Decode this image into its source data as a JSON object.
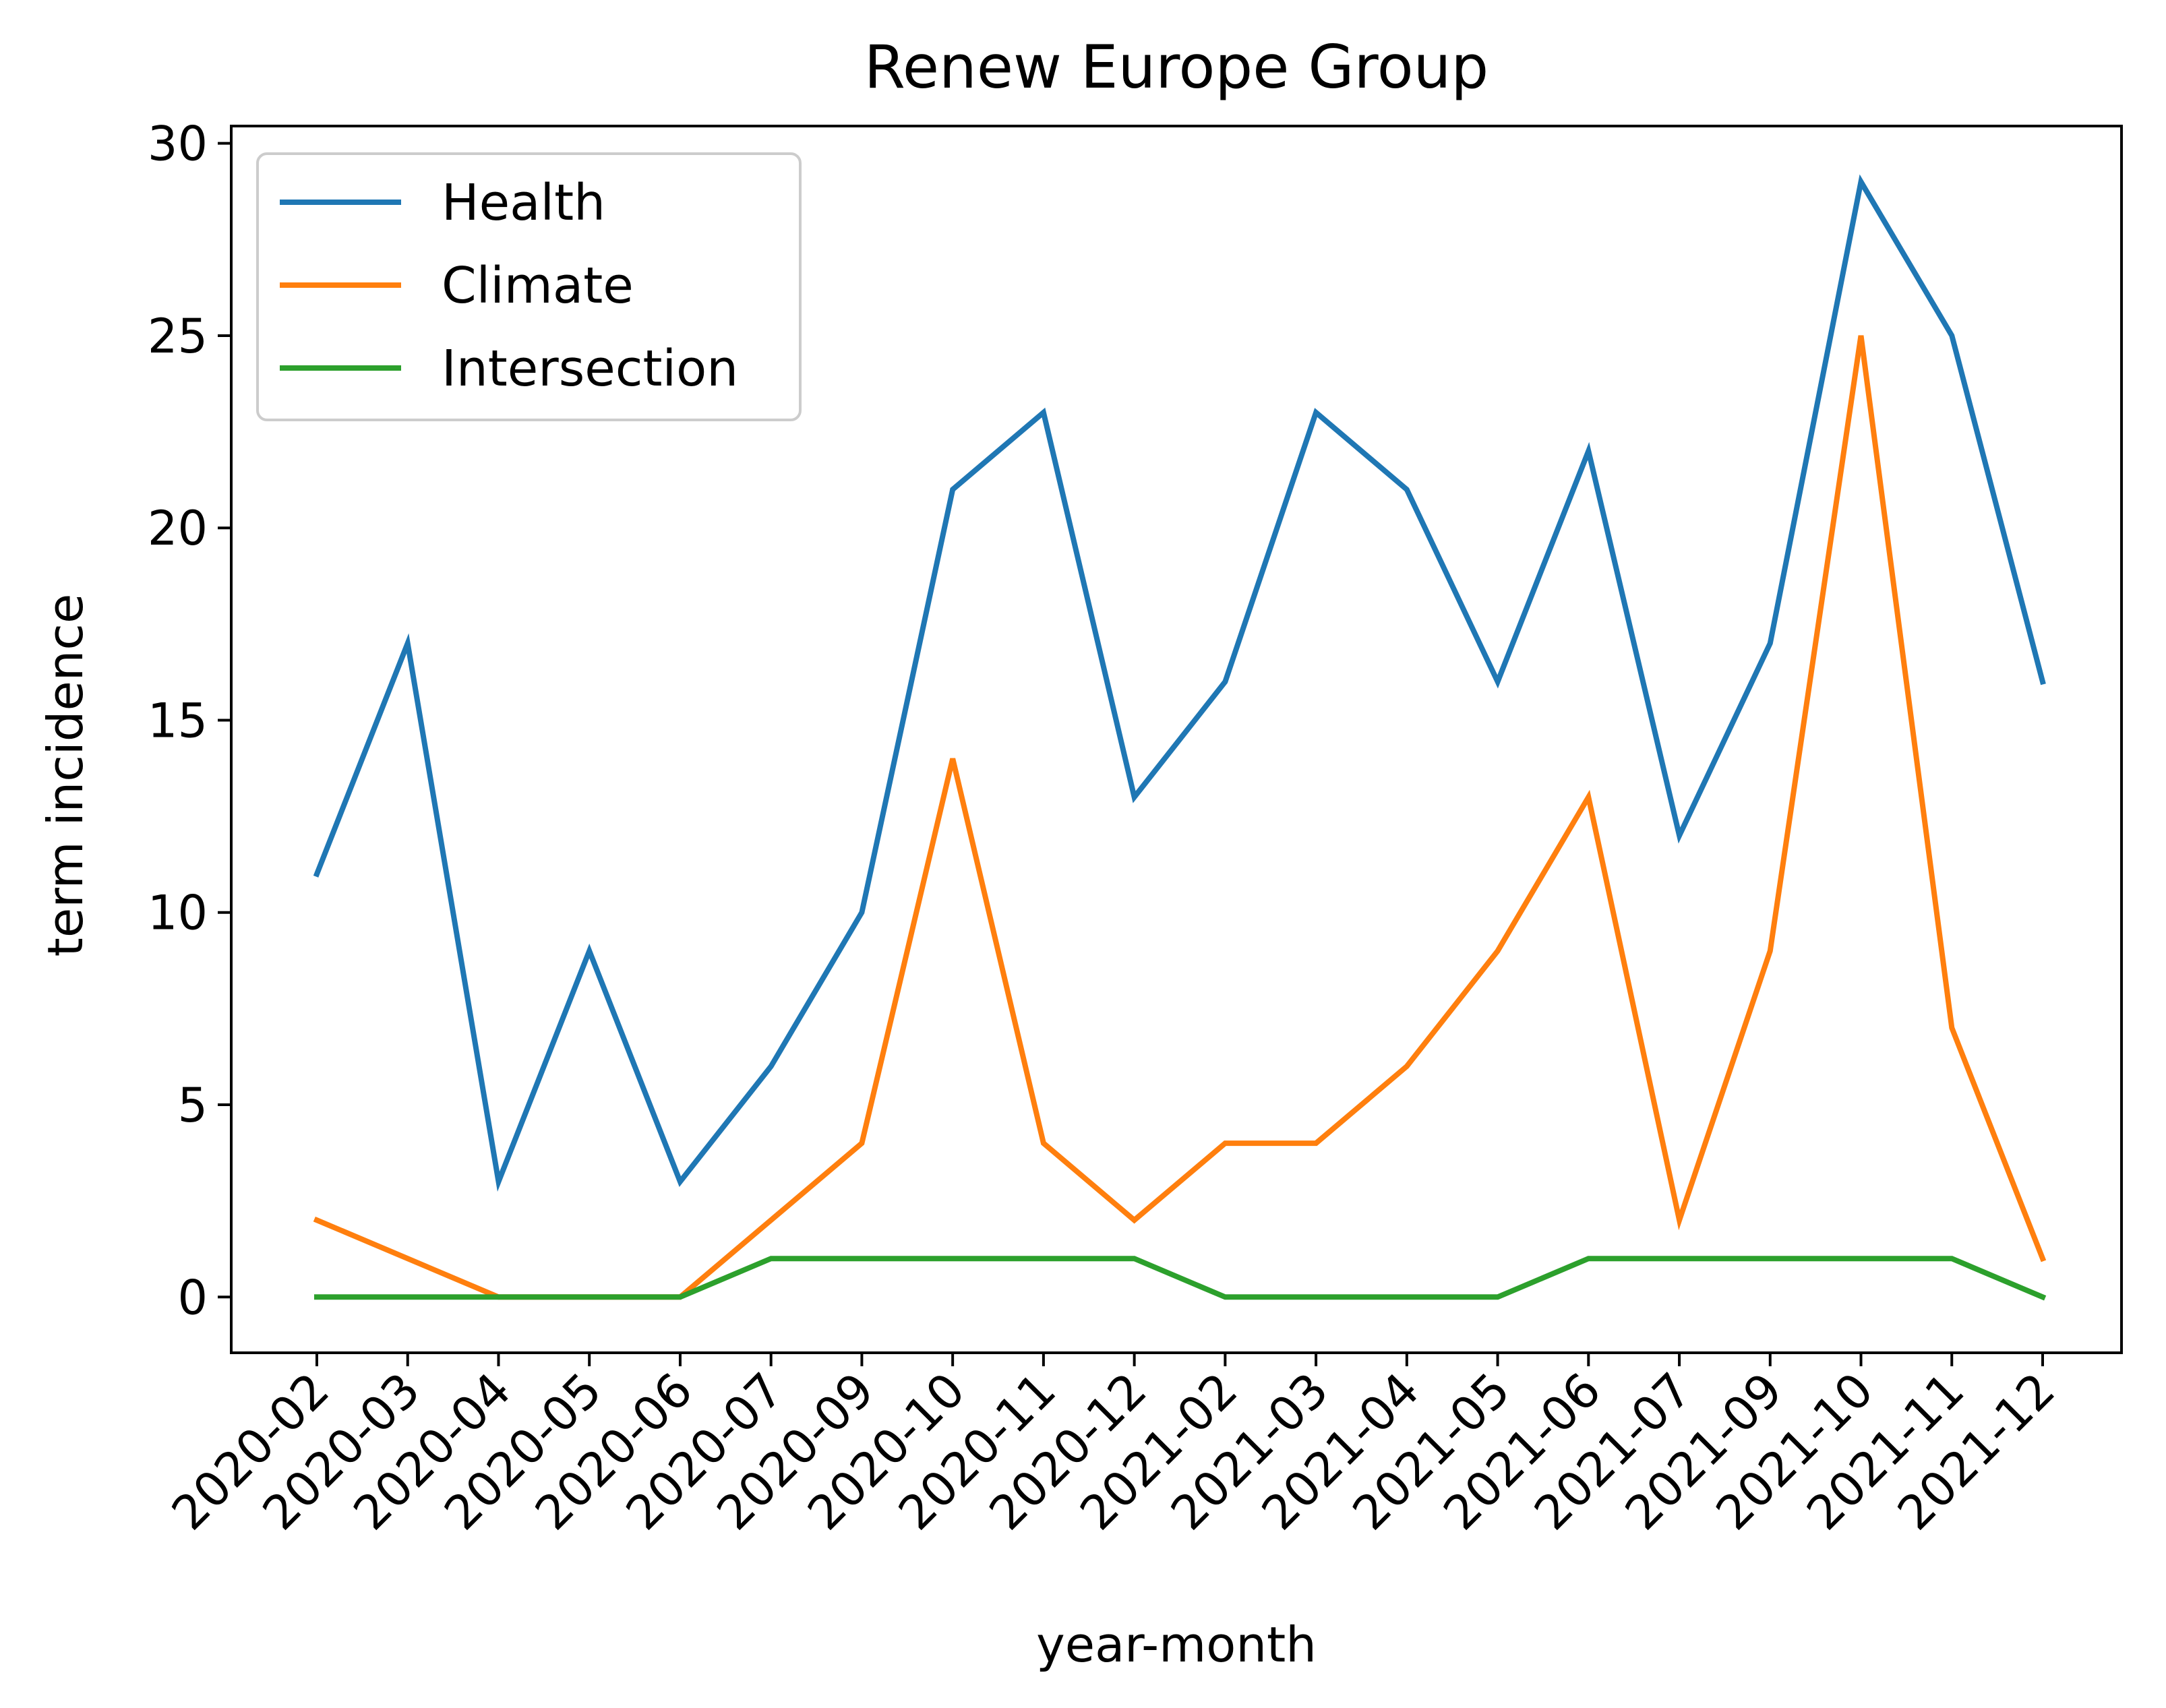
{
  "chart_data": {
    "type": "line",
    "title": "Renew Europe Group",
    "xlabel": "year-month",
    "ylabel": "term incidence",
    "categories": [
      "2020-02",
      "2020-03",
      "2020-04",
      "2020-05",
      "2020-06",
      "2020-07",
      "2020-09",
      "2020-10",
      "2020-11",
      "2020-12",
      "2021-02",
      "2021-03",
      "2021-04",
      "2021-05",
      "2021-06",
      "2021-07",
      "2021-09",
      "2021-10",
      "2021-11",
      "2021-12"
    ],
    "yticks": [
      0,
      5,
      10,
      15,
      20,
      25,
      30
    ],
    "ylim": [
      -1.45,
      30.45
    ],
    "grid": false,
    "legend_position": "top-left",
    "series": [
      {
        "name": "Health",
        "color": "#1f77b4",
        "values": [
          11,
          17,
          3,
          9,
          3,
          6,
          10,
          21,
          23,
          13,
          16,
          23,
          21,
          16,
          22,
          12,
          17,
          29,
          25,
          16
        ]
      },
      {
        "name": "Climate",
        "color": "#ff7f0e",
        "values": [
          2,
          1,
          0,
          0,
          0,
          2,
          4,
          14,
          4,
          2,
          4,
          4,
          6,
          9,
          13,
          2,
          9,
          25,
          7,
          1
        ]
      },
      {
        "name": "Intersection",
        "color": "#2ca02c",
        "values": [
          0,
          0,
          0,
          0,
          0,
          1,
          1,
          1,
          1,
          1,
          0,
          0,
          0,
          0,
          1,
          1,
          1,
          1,
          1,
          0
        ]
      }
    ]
  }
}
